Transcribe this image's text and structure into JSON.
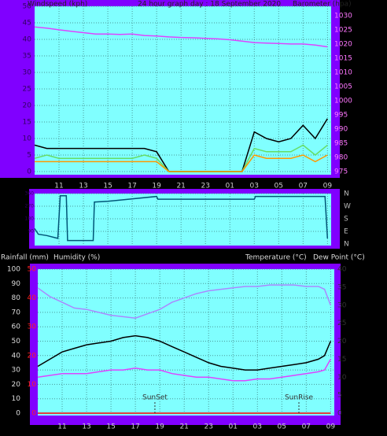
{
  "chart_data": [
    {
      "type": "line",
      "title": "24 hour graph day : 18 September 2020",
      "y_label": "Windspeed (kph)",
      "y2_label": "Barometer (hpa)",
      "x": [
        0,
        1,
        2,
        3,
        4,
        5,
        6,
        7,
        8,
        9,
        10,
        11,
        12,
        13,
        14,
        15,
        16,
        17,
        18,
        19,
        20,
        21,
        22,
        23,
        24
      ],
      "xlim": [
        0,
        24.3
      ],
      "xticks": [
        {
          "value": 2,
          "label": "11"
        },
        {
          "value": 4,
          "label": "13"
        },
        {
          "value": 6,
          "label": "15"
        },
        {
          "value": 8,
          "label": "17"
        },
        {
          "value": 10,
          "label": "19"
        },
        {
          "value": 12,
          "label": "21"
        },
        {
          "value": 14,
          "label": "23"
        },
        {
          "value": 16,
          "label": "01"
        },
        {
          "value": 18,
          "label": "03"
        },
        {
          "value": 20,
          "label": "05"
        },
        {
          "value": 22,
          "label": "07"
        },
        {
          "value": 24,
          "label": "09"
        }
      ],
      "ylim": [
        0,
        50
      ],
      "yticks": [
        0,
        5,
        10,
        15,
        20,
        25,
        30,
        35,
        40,
        45,
        50
      ],
      "y2lim": [
        975,
        1033.3
      ],
      "y2ticks": [
        975,
        980,
        985,
        990,
        995,
        1000,
        1005,
        1010,
        1015,
        1020,
        1025,
        1030
      ],
      "grid": true,
      "series": [
        {
          "color": "#000000",
          "values": [
            8,
            7,
            7,
            7,
            7,
            7,
            7,
            7,
            7,
            7,
            6,
            0,
            0,
            0,
            0,
            0,
            0,
            0,
            12,
            10,
            9,
            10,
            14,
            10,
            16
          ]
        },
        {
          "color": "#66dd66",
          "values": [
            4,
            5,
            4,
            4,
            4,
            4,
            4,
            4,
            4,
            5,
            4,
            0,
            0,
            0,
            0,
            0,
            0,
            0,
            7,
            6,
            6,
            6,
            8,
            5,
            8
          ]
        },
        {
          "color": "#ff9900",
          "values": [
            3,
            3,
            3,
            3,
            3,
            3,
            3,
            3,
            3,
            3,
            3,
            0,
            0,
            0,
            0,
            0,
            0,
            0,
            5,
            4,
            4,
            4,
            5,
            3,
            5
          ]
        },
        {
          "color": "#dd44ff",
          "axis": "y2",
          "values": [
            1026,
            1025.6,
            1025,
            1024.5,
            1024,
            1023.5,
            1023.5,
            1023.4,
            1023.5,
            1023,
            1022.8,
            1022.5,
            1022.3,
            1022.2,
            1022,
            1021.8,
            1021.5,
            1021,
            1020.5,
            1020.3,
            1020.2,
            1020,
            1020,
            1019.6,
            1019
          ]
        }
      ]
    },
    {
      "type": "line",
      "x": [
        0,
        0.3,
        1,
        1.9,
        2.1,
        2.6,
        2.7,
        4.8,
        4.9,
        6,
        10,
        10.1,
        18,
        18.1,
        23.8,
        24
      ],
      "xlim": [
        0,
        24.3
      ],
      "xticks": [
        {
          "value": 2,
          "label": "11"
        },
        {
          "value": 4,
          "label": "13"
        },
        {
          "value": 6,
          "label": "15"
        },
        {
          "value": 8,
          "label": "17"
        },
        {
          "value": 10,
          "label": "19"
        },
        {
          "value": 12,
          "label": "21"
        },
        {
          "value": 14,
          "label": "23"
        },
        {
          "value": 16,
          "label": "01"
        },
        {
          "value": 18,
          "label": "03"
        },
        {
          "value": 20,
          "label": "05"
        },
        {
          "value": 22,
          "label": "07"
        },
        {
          "value": 24,
          "label": "09"
        }
      ],
      "ylim": [
        0,
        360
      ],
      "yticks": [
        90,
        180,
        270,
        360
      ],
      "y2ticks": [
        {
          "value": 360,
          "label": "N"
        },
        {
          "value": 270,
          "label": "W"
        },
        {
          "value": 180,
          "label": "S"
        },
        {
          "value": 90,
          "label": "E"
        },
        {
          "value": 0,
          "label": "N"
        }
      ],
      "grid": true,
      "series": [
        {
          "color": "#005577",
          "values": [
            110,
            70,
            60,
            40,
            345,
            345,
            25,
            25,
            300,
            305,
            340,
            320,
            320,
            340,
            340,
            40
          ]
        }
      ]
    },
    {
      "type": "line",
      "y_label": "Rainfall (mm)",
      "y3_label": "Humidity (%)",
      "y2_label": "Temperature (°C)",
      "y4_label": "Dew Point (°C)",
      "x": [
        0,
        1,
        2,
        3,
        4,
        5,
        6,
        7,
        8,
        9,
        10,
        11,
        12,
        13,
        14,
        15,
        16,
        17,
        18,
        19,
        20,
        21,
        22,
        23,
        23.5,
        24
      ],
      "xlim": [
        0,
        24.3
      ],
      "xticks": [
        {
          "value": 2,
          "label": "11"
        },
        {
          "value": 4,
          "label": "13"
        },
        {
          "value": 6,
          "label": "15"
        },
        {
          "value": 8,
          "label": "17"
        },
        {
          "value": 10,
          "label": "19"
        },
        {
          "value": 12,
          "label": "21"
        },
        {
          "value": 14,
          "label": "23"
        },
        {
          "value": 16,
          "label": "01"
        },
        {
          "value": 18,
          "label": "03"
        },
        {
          "value": 20,
          "label": "05"
        },
        {
          "value": 22,
          "label": "07"
        },
        {
          "value": 24,
          "label": "09"
        }
      ],
      "ylim": [
        0,
        100
      ],
      "yticks": [
        0,
        10,
        20,
        30,
        40,
        50,
        60,
        70,
        80,
        90,
        100
      ],
      "y2lim": [
        0,
        40
      ],
      "y2ticks": [
        0,
        5,
        10,
        15,
        20,
        25,
        30,
        35,
        40
      ],
      "y3lim": [
        0,
        50
      ],
      "y3ticks": [
        0,
        10,
        20,
        30,
        40,
        50
      ],
      "grid": true,
      "series": [
        {
          "color": "#aa88ff",
          "values": [
            87,
            81,
            77,
            73,
            72,
            70,
            68,
            67,
            66,
            69,
            72,
            77,
            80,
            83,
            85,
            86,
            87,
            88,
            88,
            89,
            89,
            89,
            88,
            88,
            86,
            75
          ]
        },
        {
          "color": "#000000",
          "axis": "y2",
          "values": [
            13,
            15,
            17,
            18,
            19,
            19.5,
            20,
            21,
            21.5,
            21,
            20,
            18.5,
            17,
            15.5,
            14,
            13,
            12.5,
            12,
            12,
            12.5,
            13,
            13.5,
            14,
            15,
            16,
            20
          ]
        },
        {
          "color": "#dd44ff",
          "axis": "y2",
          "values": [
            10,
            10.5,
            11,
            11,
            11,
            11.5,
            12,
            12,
            12.5,
            12,
            12,
            11,
            10.5,
            10,
            10,
            9.5,
            9,
            9,
            9.5,
            9.5,
            10,
            10.5,
            11,
            11.5,
            12,
            15
          ]
        },
        {
          "color": "#ff0000",
          "axis": "y3",
          "values": [
            0,
            0,
            0,
            0,
            0,
            0,
            0,
            0,
            0,
            0,
            0,
            0,
            0,
            0,
            0,
            0,
            0,
            0,
            0,
            0,
            0,
            0,
            0,
            0,
            0,
            0
          ]
        }
      ],
      "annotations": [
        {
          "text": "SunSet",
          "x": 9.6
        },
        {
          "text": "SunRise",
          "x": 21.4
        }
      ]
    }
  ]
}
